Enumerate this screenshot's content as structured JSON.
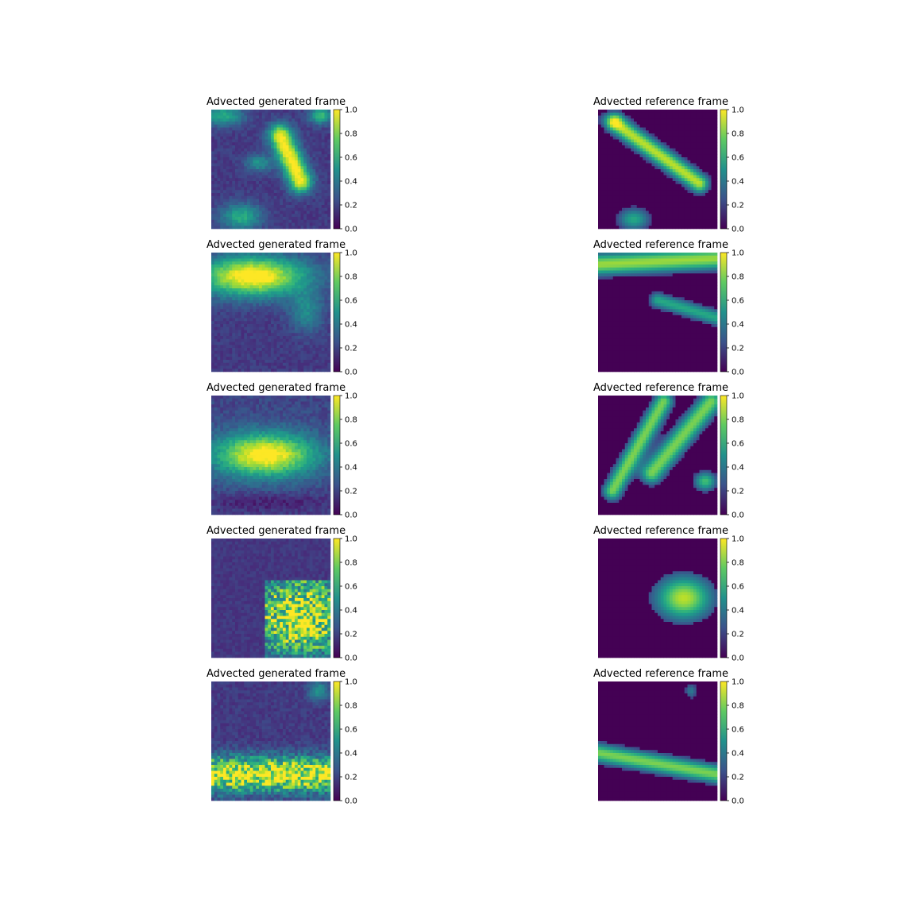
{
  "chart_data": {
    "type": "heatmap",
    "colormap": "viridis",
    "grid": false,
    "color_range": [
      0.0,
      1.0
    ],
    "colorbar_ticks": [
      "0.0",
      "0.2",
      "0.4",
      "0.6",
      "0.8",
      "1.0"
    ],
    "layout": "5 rows x 2 columns",
    "panels": [
      {
        "row": 1,
        "column": 1,
        "title": "Advected generated frame",
        "pattern": "background noise ~0.15; bright diagonal streak in centre-right (peak ~0.95); patches in top-left, top-right and bottom-left"
      },
      {
        "row": 1,
        "column": 2,
        "title": "Advected reference frame",
        "pattern": "mostly 0; diagonal band from upper-left to centre-right (peak ~0.8); blobs at bottom-left"
      },
      {
        "row": 2,
        "column": 1,
        "title": "Advected generated frame",
        "pattern": "bright band across top third (peak ~1.0); medium blob on right; low noise below"
      },
      {
        "row": 2,
        "column": 2,
        "title": "Advected reference frame",
        "pattern": "band along top edge (peak ~0.9); thin streak in middle-right; rest 0"
      },
      {
        "row": 3,
        "column": 1,
        "title": "Advected generated frame",
        "pattern": "broad wedge across centre (peak ~0.95); dark strip near bottom"
      },
      {
        "row": 3,
        "column": 2,
        "title": "Advected reference frame",
        "pattern": "two diagonal bands from upper-right to lower-left (peak ~0.9); small blob at right; rest 0"
      },
      {
        "row": 4,
        "column": 1,
        "title": "Advected generated frame",
        "pattern": "noisy block in lower-right (values up to 1.0); low noise elsewhere"
      },
      {
        "row": 4,
        "column": 2,
        "title": "Advected reference frame",
        "pattern": "single blob centre-right (peak ~0.85); rest 0"
      },
      {
        "row": 5,
        "column": 1,
        "title": "Advected generated frame",
        "pattern": "bright noisy horizontal band in lower third (values up to 1.0); small blob top-right"
      },
      {
        "row": 5,
        "column": 2,
        "title": "Advected reference frame",
        "pattern": "horizontal band across lower part (peak ~0.8); small patches top-right; rest 0"
      }
    ]
  },
  "colors": {
    "viridis_0": "#440154",
    "viridis_25": "#3b528b",
    "viridis_50": "#21918c",
    "viridis_75": "#5ec962",
    "viridis_100": "#fde725"
  }
}
